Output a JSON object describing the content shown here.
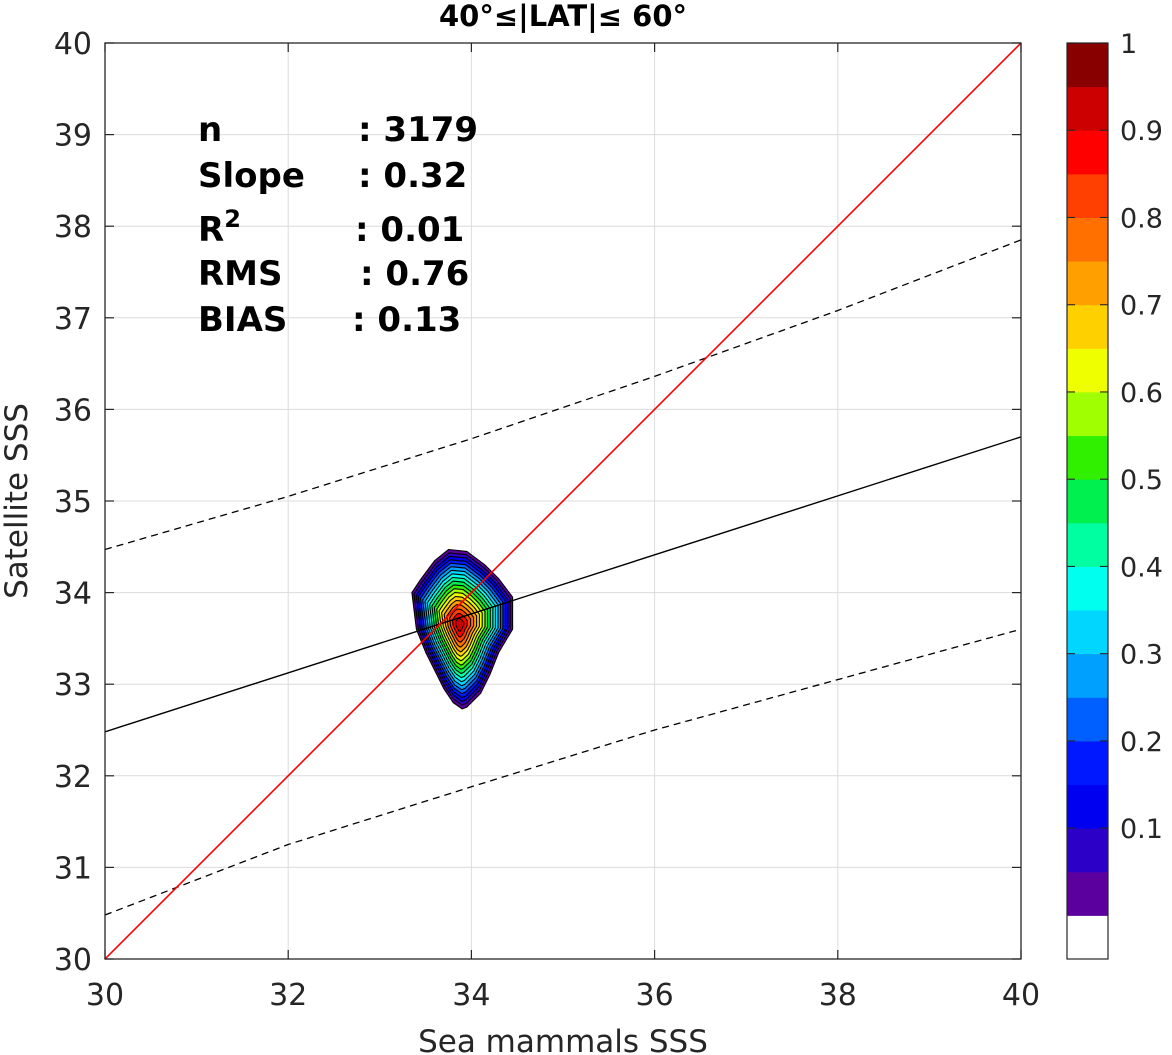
{
  "chart_data": {
    "type": "contour",
    "title": "40°≤|LAT|≤ 60°",
    "xlabel": "Sea mammals SSS",
    "ylabel": "Satellite SSS",
    "xlim": [
      30,
      40
    ],
    "ylim": [
      30,
      40
    ],
    "xticks": [
      30,
      32,
      34,
      36,
      38,
      40
    ],
    "yticks": [
      30,
      31,
      32,
      33,
      34,
      35,
      36,
      37,
      38,
      39,
      40
    ],
    "grid": true,
    "stats": {
      "rows": [
        {
          "label": "n",
          "value": ": 3179"
        },
        {
          "label": "Slope",
          "value": ": 0.32"
        },
        {
          "label": "R",
          "sup": "2",
          "value": ": 0.01"
        },
        {
          "label": "RMS",
          "value": ": 0.76"
        },
        {
          "label": "BIAS",
          "value": ": 0.13"
        }
      ]
    },
    "lines": {
      "identity": {
        "x": [
          30,
          40
        ],
        "y": [
          30,
          40
        ],
        "color": "#ff0000"
      },
      "fit": {
        "x": [
          30,
          40
        ],
        "y": [
          32.48,
          35.7
        ],
        "color": "#000000"
      },
      "upper_bound": {
        "x": [
          30,
          32,
          34,
          36,
          38,
          40
        ],
        "y": [
          34.47,
          35.05,
          35.68,
          36.36,
          37.08,
          37.85
        ]
      },
      "lower_bound": {
        "x": [
          30,
          32,
          34,
          36,
          38,
          40
        ],
        "y": [
          30.48,
          31.25,
          31.88,
          32.5,
          33.05,
          33.6
        ]
      }
    },
    "density": {
      "center": [
        33.87,
        33.65
      ],
      "levels": [
        0.05,
        0.1,
        0.15,
        0.2,
        0.25,
        0.3,
        0.35,
        0.4,
        0.45,
        0.5,
        0.55,
        0.6,
        0.65,
        0.7,
        0.75,
        0.8,
        0.85,
        0.9,
        0.95
      ],
      "outer_contour": {
        "x": [
          33.35,
          33.45,
          33.6,
          33.75,
          33.95,
          34.15,
          34.3,
          34.45,
          34.45,
          34.3,
          34.2,
          34.1,
          33.95,
          33.9,
          33.8,
          33.7,
          33.5,
          33.4,
          33.35
        ],
        "y": [
          34.0,
          34.15,
          34.35,
          34.47,
          34.45,
          34.3,
          34.15,
          33.95,
          33.6,
          33.35,
          33.1,
          32.9,
          32.75,
          32.73,
          32.8,
          32.95,
          33.35,
          33.6,
          34.0
        ]
      }
    },
    "colorbar": {
      "ticks": [
        0.1,
        0.2,
        0.3,
        0.4,
        0.5,
        0.6,
        0.7,
        0.8,
        0.9,
        1
      ],
      "tick_labels": [
        "0.1",
        "0.2",
        "0.3",
        "0.4",
        "0.5",
        "0.6",
        "0.7",
        "0.8",
        "0.9",
        "1"
      ],
      "colors": [
        "#ffffff",
        "#5b009f",
        "#2d00c8",
        "#0000f0",
        "#0018ff",
        "#0060ff",
        "#00a0ff",
        "#00d6ff",
        "#00ffee",
        "#00ffa0",
        "#00f050",
        "#30f000",
        "#a0ff00",
        "#f0ff00",
        "#ffd000",
        "#ffa000",
        "#ff7000",
        "#ff4000",
        "#ff0000",
        "#cc0000",
        "#880000"
      ]
    }
  }
}
